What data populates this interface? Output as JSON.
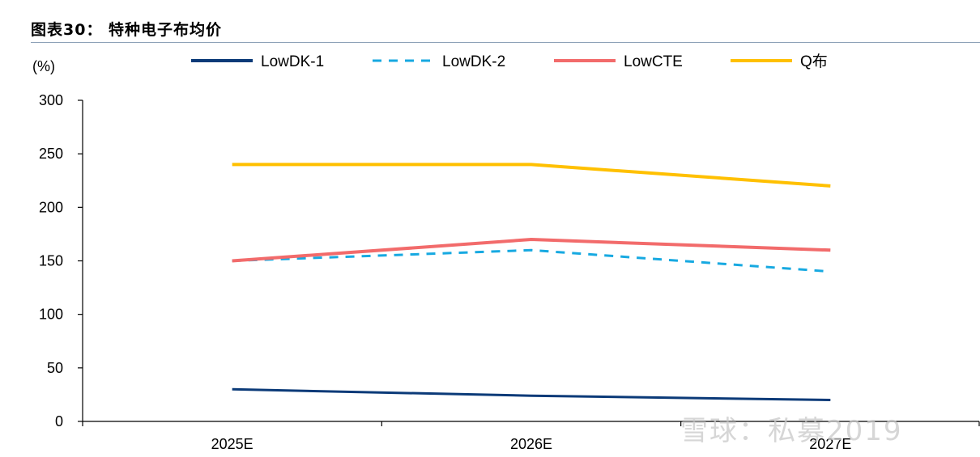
{
  "figure": {
    "title": "图表30： 特种电子布均价"
  },
  "watermark": "雪球：私募2019",
  "colors": {
    "LowDK-1": "#0b3a78",
    "LowDK-2": "#17a9e1",
    "LowCTE": "#f26b6b",
    "Q布": "#ffc000"
  },
  "chart_data": {
    "type": "line",
    "title": "特种电子布均价",
    "unit_label": "(%)",
    "categories": [
      "2025E",
      "2026E",
      "2027E"
    ],
    "ylim": [
      0,
      300
    ],
    "yticks": [
      0,
      50,
      100,
      150,
      200,
      250,
      300
    ],
    "grid": false,
    "legend_position": "top",
    "series": [
      {
        "name": "LowDK-1",
        "values": [
          30,
          24,
          20
        ],
        "style": "solid"
      },
      {
        "name": "LowDK-2",
        "values": [
          150,
          160,
          140
        ],
        "style": "dashed"
      },
      {
        "name": "LowCTE",
        "values": [
          150,
          170,
          160
        ],
        "style": "solid"
      },
      {
        "name": "Q布",
        "values": [
          240,
          240,
          220
        ],
        "style": "solid"
      }
    ]
  }
}
